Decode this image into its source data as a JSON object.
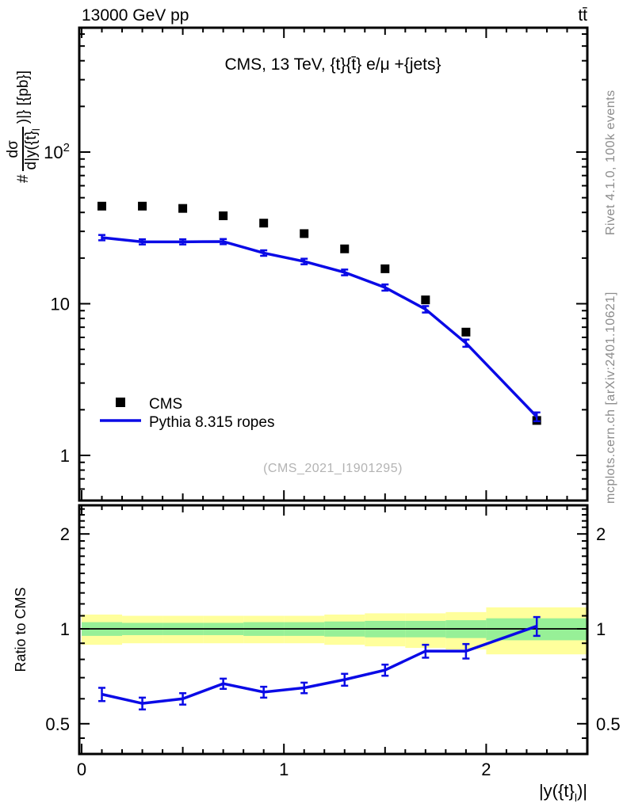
{
  "header": {
    "left_title": "13000 GeV pp",
    "right_title": "tt̄"
  },
  "main_panel": {
    "title": "CMS, 13 TeV, {t}{t̄} e/μ +{jets}",
    "watermark": "(CMS_2021_I1901295)",
    "ylabel": {
      "prefix": "#",
      "numerator": "dσ",
      "denominator_pre": "d|y({t}",
      "denominator_sub": "l",
      "suffix": ")|} [{pb}]"
    },
    "legend": [
      {
        "label": "CMS",
        "marker": "filled-square",
        "color": "#000000"
      },
      {
        "label": "Pythia 8.315 ropes",
        "marker": "line",
        "color": "#0a0ae6"
      }
    ]
  },
  "ratio_panel": {
    "ylabel": "Ratio to CMS"
  },
  "x_axis_label_parts": {
    "pre": "|y({t}",
    "sub": "l",
    "post": ")|"
  },
  "sidebar_right": {
    "top": "Rivet 4.1.0,  100k events",
    "bottom": "mcplots.cern.ch [arXiv:2401.10621]"
  },
  "colors": {
    "mc_line": "#0a0ae6",
    "data_marker": "#000000",
    "band_yellow": "#ffff9c",
    "band_green": "#97f097",
    "gray_text": "#8c8c8c",
    "watermark": "#b3b3b3"
  },
  "chart_data": {
    "type": "line",
    "title": "CMS, 13 TeV, {t}{t̄} e/μ +{jets}",
    "xlabel": "|y({t}_l)|",
    "ylabel": "# dσ/d|y({t}_l)|} [{pb}]",
    "x": [
      0.1,
      0.3,
      0.5,
      0.7,
      0.9,
      1.1,
      1.3,
      1.5,
      1.7,
      1.9,
      2.25
    ],
    "bin_edges": [
      0,
      0.2,
      0.4,
      0.6,
      0.8,
      1.0,
      1.2,
      1.4,
      1.6,
      1.8,
      2.0,
      2.5
    ],
    "x_axis": {
      "xmin": 0,
      "xmax": 2.5,
      "major_ticks": [
        {
          "v": 0,
          "label": "0"
        },
        {
          "v": 1,
          "label": "1"
        },
        {
          "v": 2,
          "label": "2"
        }
      ],
      "minor_step": 0.1,
      "medium_step": 0.5
    },
    "main_axis": {
      "scale": "log",
      "ymin": 0.5,
      "ymax": 660,
      "major_ticks": [
        {
          "v": 100,
          "base": "10",
          "exp": "2"
        },
        {
          "v": 10,
          "base": "10",
          "exp": ""
        },
        {
          "v": 1,
          "base": "1",
          "exp": ""
        }
      ]
    },
    "series": [
      {
        "name": "CMS",
        "type": "points",
        "marker": "filled-square",
        "color": "#000000",
        "values": [
          44,
          44,
          42.5,
          38,
          34,
          29,
          23,
          17,
          10.6,
          6.5,
          1.7
        ]
      },
      {
        "name": "Pythia 8.315 ropes",
        "type": "line",
        "color": "#0a0ae6",
        "values": [
          27.3,
          25.6,
          25.6,
          25.7,
          21.6,
          19.0,
          16.1,
          12.8,
          9.2,
          5.5,
          1.8
        ],
        "errors": [
          1.1,
          1.0,
          1.0,
          1.0,
          0.9,
          0.8,
          0.7,
          0.6,
          0.45,
          0.3,
          0.12
        ]
      }
    ],
    "ratio": {
      "label": "Ratio to CMS",
      "scale": "log",
      "ymin": 0.4,
      "ymax": 2.47,
      "ticks": [
        {
          "v": 2,
          "label": "2"
        },
        {
          "v": 1,
          "label": "1"
        },
        {
          "v": 0.5,
          "label": "0.5"
        }
      ],
      "minor_ticks": [
        0.45,
        0.6,
        0.7,
        0.8,
        0.9,
        1.1,
        1.2,
        1.3,
        1.4,
        1.5,
        1.6,
        1.7,
        1.8,
        1.9,
        2.1,
        2.2,
        2.3,
        2.4
      ],
      "values": [
        0.62,
        0.58,
        0.6,
        0.67,
        0.63,
        0.65,
        0.69,
        0.74,
        0.85,
        0.85,
        1.02
      ],
      "errors": [
        0.03,
        0.025,
        0.025,
        0.025,
        0.025,
        0.025,
        0.03,
        0.03,
        0.04,
        0.045,
        0.07
      ],
      "reference": 1,
      "bands": {
        "yellow": {
          "color": "#ffff9c",
          "up": [
            1.11,
            1.1,
            1.1,
            1.1,
            1.1,
            1.1,
            1.11,
            1.12,
            1.12,
            1.13,
            1.17
          ],
          "down": [
            0.89,
            0.9,
            0.9,
            0.9,
            0.9,
            0.9,
            0.89,
            0.88,
            0.87,
            0.86,
            0.83
          ]
        },
        "green": {
          "color": "#97f097",
          "up": [
            1.05,
            1.045,
            1.045,
            1.045,
            1.05,
            1.05,
            1.055,
            1.06,
            1.06,
            1.065,
            1.08
          ],
          "down": [
            0.95,
            0.955,
            0.955,
            0.955,
            0.95,
            0.95,
            0.945,
            0.94,
            0.94,
            0.935,
            0.92
          ]
        }
      }
    },
    "legend_position": "lower-left",
    "grid": false
  }
}
